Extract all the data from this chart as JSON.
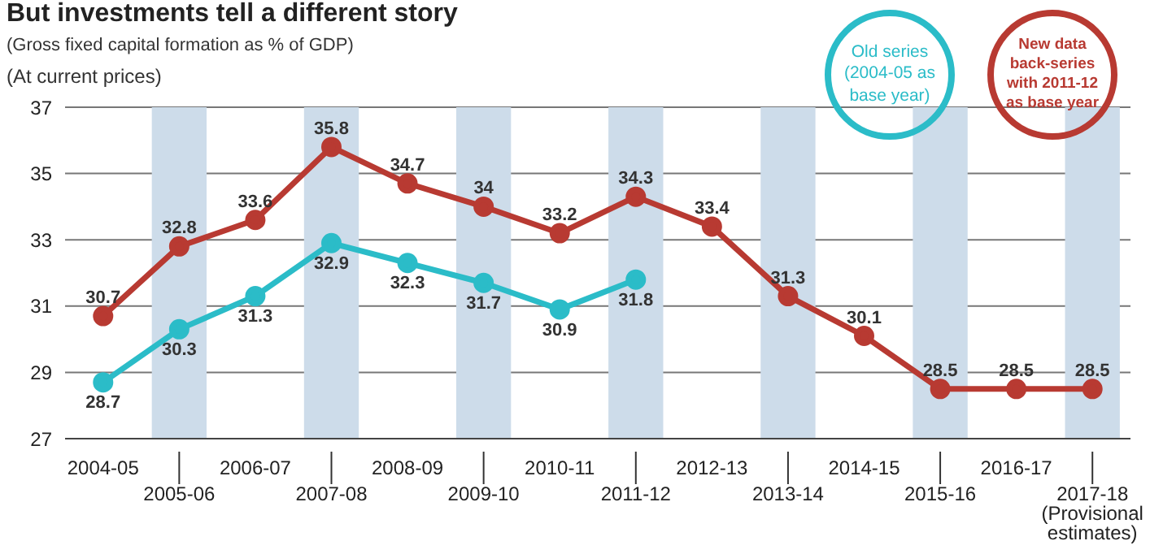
{
  "chart_data": {
    "type": "line",
    "title": "But investments tell a different story",
    "subtitle": "(Gross fixed capital formation as % of GDP)",
    "annotations": [
      "(At current prices)"
    ],
    "categories": [
      "2004-05",
      "2005-06",
      "2006-07",
      "2007-08",
      "2008-09",
      "2009-10",
      "2010-11",
      "2011-12",
      "2012-13",
      "2013-14",
      "2014-15",
      "2015-16",
      "2016-17",
      "2017-18 (Provisional estimates)"
    ],
    "series": [
      {
        "name": "Old series (2004-05 as base year)",
        "color": "#2bbcc8",
        "values": [
          28.7,
          30.3,
          31.3,
          32.9,
          32.3,
          31.7,
          30.9,
          31.8,
          null,
          null,
          null,
          null,
          null,
          null
        ]
      },
      {
        "name": "New data back-series with 2011-12 as base year",
        "color": "#b83a32",
        "values": [
          30.7,
          32.8,
          33.6,
          35.8,
          34.7,
          34,
          33.2,
          34.3,
          33.4,
          31.3,
          30.1,
          28.5,
          28.5,
          28.5
        ]
      }
    ],
    "ylim": [
      27,
      37
    ],
    "yticks": [
      27,
      29,
      31,
      33,
      35,
      37
    ],
    "grid": "y",
    "legend": "top right",
    "marker": "circle",
    "line_style": "solid",
    "data_labels": true,
    "bands": [
      {
        "axis": "x",
        "from": "2005-06",
        "to": "2005-06",
        "color": "#cddcea"
      },
      {
        "axis": "x",
        "from": "2007-08",
        "to": "2007-08",
        "color": "#cddcea"
      },
      {
        "axis": "x",
        "from": "2009-10",
        "to": "2009-10",
        "color": "#cddcea"
      },
      {
        "axis": "x",
        "from": "2011-12",
        "to": "2011-12",
        "color": "#cddcea"
      },
      {
        "axis": "x",
        "from": "2013-14",
        "to": "2013-14",
        "color": "#cddcea"
      },
      {
        "axis": "x",
        "from": "2015-16",
        "to": "2015-16",
        "color": "#cddcea"
      },
      {
        "axis": "x",
        "from": "2017-18 (Provisional estimates)",
        "to": "2017-18 (Provisional estimates)",
        "color": "#cddcea"
      }
    ]
  }
}
